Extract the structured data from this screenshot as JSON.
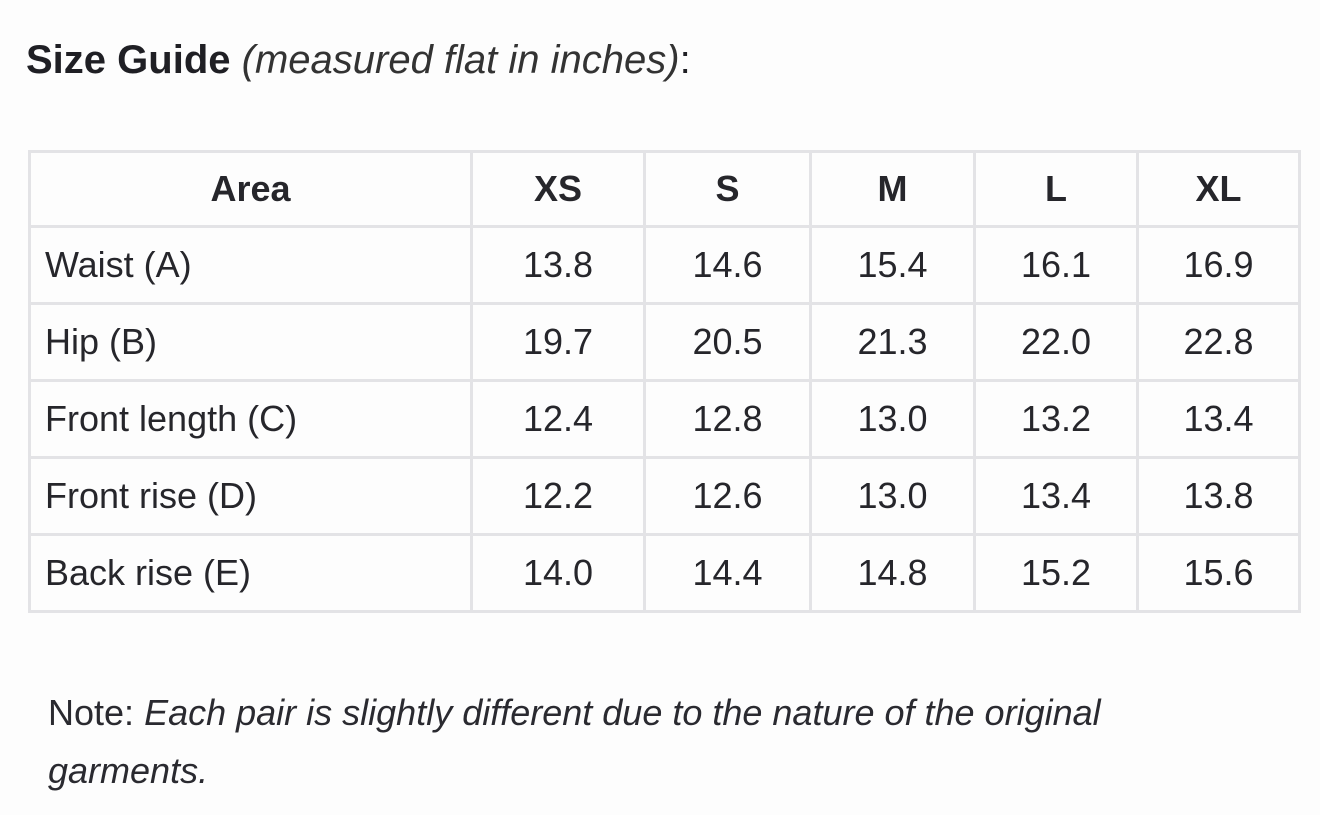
{
  "title": {
    "bold": "Size Guide",
    "italic": "(measured flat in inches)",
    "suffix": ":"
  },
  "table": {
    "header": [
      "Area",
      "XS",
      "S",
      "M",
      "L",
      "XL"
    ],
    "rows": [
      [
        "Waist (A)",
        "13.8",
        "14.6",
        "15.4",
        "16.1",
        "16.9"
      ],
      [
        "Hip (B)",
        "19.7",
        "20.5",
        "21.3",
        "22.0",
        "22.8"
      ],
      [
        "Front length (C)",
        "12.4",
        "12.8",
        "13.0",
        "13.2",
        "13.4"
      ],
      [
        "Front rise (D)",
        "12.2",
        "12.6",
        "13.0",
        "13.4",
        "13.8"
      ],
      [
        "Back rise (E)",
        "14.0",
        "14.4",
        "14.8",
        "15.2",
        "15.6"
      ]
    ]
  },
  "note": {
    "label": "Note:",
    "text": "Each pair is slightly different due to the nature of the original garments."
  }
}
